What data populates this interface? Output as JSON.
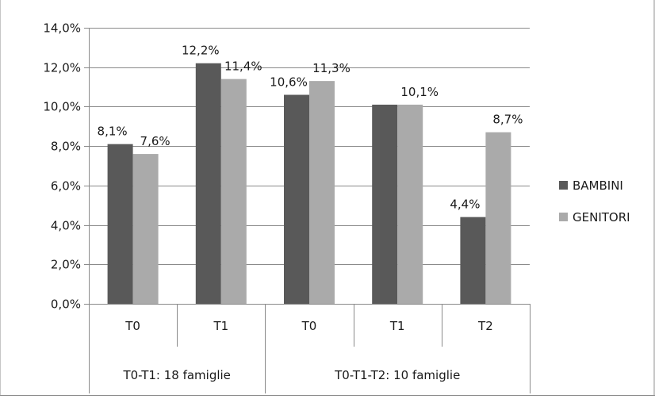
{
  "chart_data": {
    "type": "bar",
    "title": "",
    "xlabel": "",
    "ylabel": "",
    "ylim": [
      0,
      14
    ],
    "yticks": [
      0,
      2,
      4,
      6,
      8,
      10,
      12,
      14
    ],
    "ytick_labels": [
      "0,0%",
      "2,0%",
      "4,0%",
      "6,0%",
      "8,0%",
      "10,0%",
      "12,0%",
      "14,0%"
    ],
    "grid": true,
    "legend_position": "right",
    "categories": [
      "T0",
      "T1",
      "T0",
      "T1",
      "T2"
    ],
    "groups": [
      {
        "label": "T0-T1: 18 famiglie",
        "span": 2
      },
      {
        "label": "T0-T1-T2: 10 famiglie",
        "span": 3
      }
    ],
    "series": [
      {
        "name": "BAMBINI",
        "color": "#595959",
        "values": [
          8.1,
          12.2,
          10.6,
          10.1,
          4.4
        ],
        "labels": [
          "8,1%",
          "12,2%",
          "10,6%",
          "",
          "4,4%"
        ]
      },
      {
        "name": "GENITORI",
        "color": "#aaaaaa",
        "values": [
          7.6,
          11.4,
          11.3,
          10.1,
          8.7
        ],
        "labels": [
          "7,6%",
          "11,4%",
          "11,3%",
          "10,1%",
          "8,7%"
        ]
      }
    ]
  }
}
